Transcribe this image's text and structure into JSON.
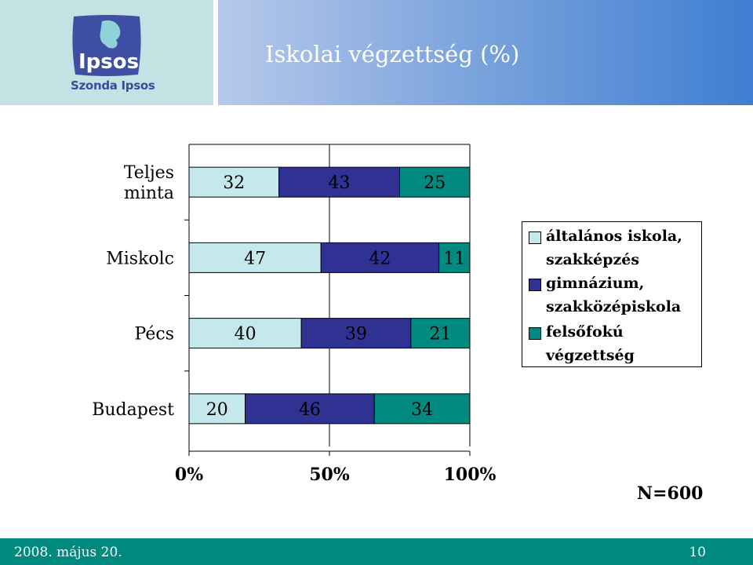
{
  "header": {
    "title": "Iskolai végzettség (%)"
  },
  "logo": {
    "brand": "Ipsos",
    "subtitle": "Szonda Ipsos"
  },
  "colors": {
    "series_1": "#c4e8ec",
    "series_2": "#2f3193",
    "series_3": "#018b80",
    "footer": "#00897f"
  },
  "chart_data": {
    "type": "bar",
    "orientation": "horizontal",
    "stacked": true,
    "percent_stacked": true,
    "categories": [
      "Teljes minta",
      "Miskolc",
      "Pécs",
      "Budapest"
    ],
    "category_lines": [
      [
        "Teljes",
        "minta"
      ],
      [
        "Miskolc"
      ],
      [
        "Pécs"
      ],
      [
        "Budapest"
      ]
    ],
    "series": [
      {
        "name": "általános iskola, szakképzés",
        "values": [
          32,
          47,
          40,
          20
        ]
      },
      {
        "name": "gimnázium, szakközépiskola",
        "values": [
          43,
          42,
          39,
          46
        ]
      },
      {
        "name": "felsőfokú végzettség",
        "values": [
          25,
          11,
          21,
          34
        ]
      }
    ],
    "xlim": [
      0,
      100
    ],
    "x_ticks": [
      "0%",
      "50%",
      "100%"
    ],
    "grid": true,
    "legend_position": "right"
  },
  "legend": {
    "items": [
      {
        "lines": [
          "általános iskola,",
          "szakképzés"
        ]
      },
      {
        "lines": [
          "gimnázium,",
          "szakközépiskola"
        ]
      },
      {
        "lines": [
          "felsőfokú",
          "végzettség"
        ]
      }
    ]
  },
  "note": "N=600",
  "footer": {
    "date": "2008. május 20.",
    "page": "10"
  }
}
